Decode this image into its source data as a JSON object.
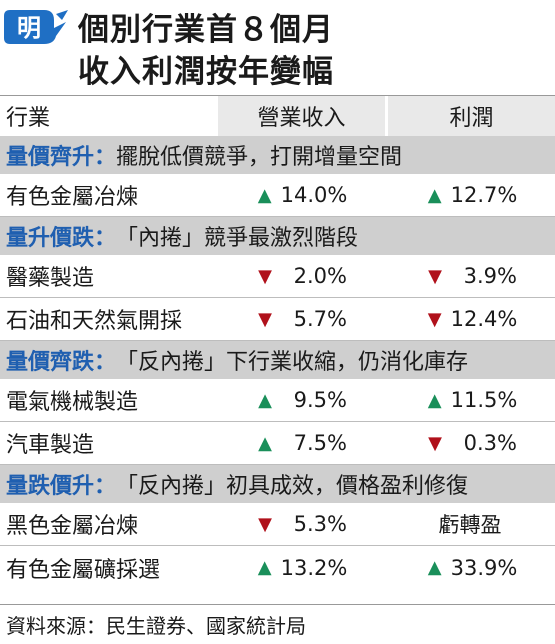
{
  "logo_text": "明",
  "title": {
    "line1": "個別行業首８個月",
    "line2": "收入利潤按年變幅"
  },
  "columns": {
    "industry": "行業",
    "revenue": "營業收入",
    "profit": "利潤"
  },
  "colors": {
    "category": "#1f5fb0",
    "up": "#1a8f5a",
    "down": "#b0111b",
    "category_bg": "#cfcfcf"
  },
  "sections": [
    {
      "name": "量價齊升",
      "colon": "：",
      "desc": "擺脫低價競爭，打開增量空間",
      "rows": [
        {
          "industry": "有色金屬冶煉",
          "revenue_dir": "up",
          "revenue": "14.0%",
          "profit_dir": "up",
          "profit": "12.7%"
        }
      ]
    },
    {
      "name": "量升價跌",
      "colon": "：",
      "desc": "「內捲」競爭最激烈階段",
      "rows": [
        {
          "industry": "醫藥製造",
          "revenue_dir": "down",
          "revenue": "2.0%",
          "profit_dir": "down",
          "profit": "3.9%"
        },
        {
          "industry": "石油和天然氣開採",
          "revenue_dir": "down",
          "revenue": "5.7%",
          "profit_dir": "down",
          "profit": "12.4%"
        }
      ]
    },
    {
      "name": "量價齊跌",
      "colon": "：",
      "desc": "「反內捲」下行業收縮，仍消化庫存",
      "rows": [
        {
          "industry": "電氣機械製造",
          "revenue_dir": "up",
          "revenue": "9.5%",
          "profit_dir": "up",
          "profit": "11.5%"
        },
        {
          "industry": "汽車製造",
          "revenue_dir": "up",
          "revenue": "7.5%",
          "profit_dir": "down",
          "profit": "0.3%"
        }
      ]
    },
    {
      "name": "量跌價升",
      "colon": "：",
      "desc": "「反內捲」初具成效，價格盈利修復",
      "rows": [
        {
          "industry": "黑色金屬冶煉",
          "revenue_dir": "down",
          "revenue": "5.3%",
          "profit_dir": "none",
          "profit": "虧轉盈"
        },
        {
          "industry": "有色金屬礦採選",
          "revenue_dir": "up",
          "revenue": "13.2%",
          "profit_dir": "up",
          "profit": "33.9%"
        }
      ]
    }
  ],
  "icons": {
    "up": "▲",
    "down": "▼"
  },
  "source": "資料來源：民生證券、國家統計局"
}
